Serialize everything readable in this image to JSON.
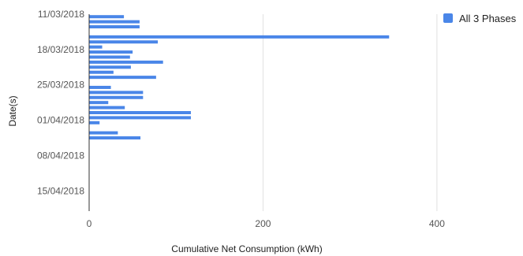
{
  "chart_data": {
    "type": "bar",
    "orientation": "horizontal",
    "title": "",
    "xlabel": "Cumulative Net Consumption (kWh)",
    "ylabel": "Date(s)",
    "xlim": [
      0,
      450
    ],
    "x_ticks": [
      0,
      200,
      400
    ],
    "grid": true,
    "legend_position": "top-right",
    "y_range": [
      "2018-03-11",
      "2018-04-19"
    ],
    "y_ticks": [
      "11/03/2018",
      "18/03/2018",
      "25/03/2018",
      "01/04/2018",
      "08/04/2018",
      "15/04/2018"
    ],
    "series": [
      {
        "name": "All 3 Phases",
        "color": "#4a86e8",
        "points": [
          {
            "date": "2018-03-11",
            "value": 40
          },
          {
            "date": "2018-03-12",
            "value": 58
          },
          {
            "date": "2018-03-13",
            "value": 58
          },
          {
            "date": "2018-03-14",
            "value": 0
          },
          {
            "date": "2018-03-15",
            "value": 345
          },
          {
            "date": "2018-03-16",
            "value": 79
          },
          {
            "date": "2018-03-17",
            "value": 15
          },
          {
            "date": "2018-03-18",
            "value": 50
          },
          {
            "date": "2018-03-19",
            "value": 47
          },
          {
            "date": "2018-03-20",
            "value": 85
          },
          {
            "date": "2018-03-21",
            "value": 48
          },
          {
            "date": "2018-03-22",
            "value": 28
          },
          {
            "date": "2018-03-23",
            "value": 77
          },
          {
            "date": "2018-03-24",
            "value": 0
          },
          {
            "date": "2018-03-25",
            "value": 25
          },
          {
            "date": "2018-03-26",
            "value": 62
          },
          {
            "date": "2018-03-27",
            "value": 62
          },
          {
            "date": "2018-03-28",
            "value": 22
          },
          {
            "date": "2018-03-29",
            "value": 41
          },
          {
            "date": "2018-03-30",
            "value": 117
          },
          {
            "date": "2018-03-31",
            "value": 117
          },
          {
            "date": "2018-04-01",
            "value": 12
          },
          {
            "date": "2018-04-02",
            "value": 0
          },
          {
            "date": "2018-04-03",
            "value": 33
          },
          {
            "date": "2018-04-04",
            "value": 59
          }
        ]
      }
    ]
  }
}
